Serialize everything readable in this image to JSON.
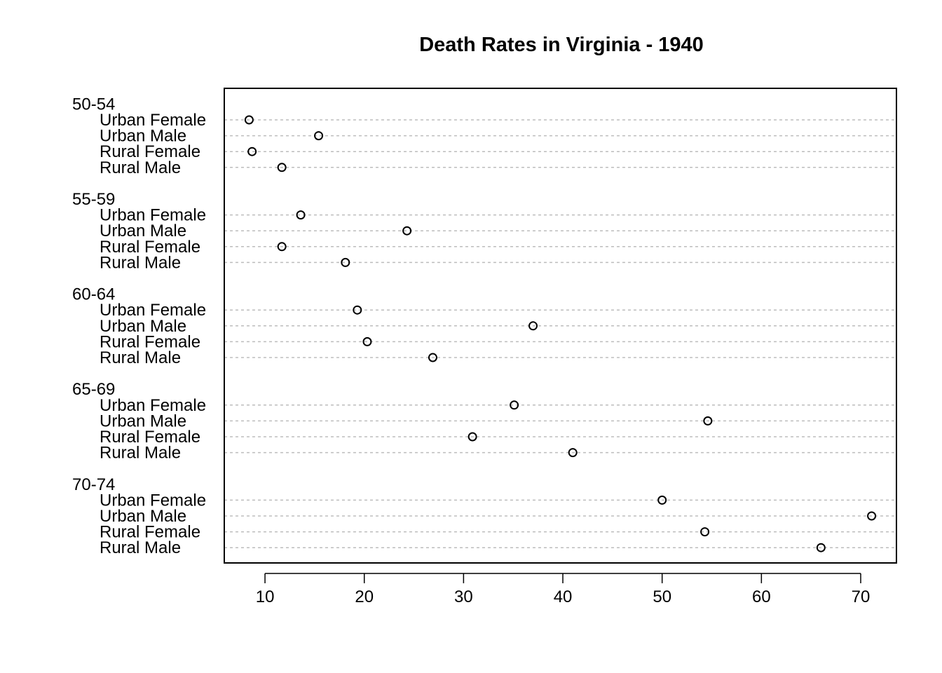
{
  "chart_data": {
    "type": "scatter",
    "title": "Death Rates in Virginia - 1940",
    "xlabel": "",
    "ylabel": "",
    "xlim": [
      5.9,
      73.6
    ],
    "xticks": [
      10,
      20,
      30,
      40,
      50,
      60,
      70
    ],
    "grid": "dashed horizontal per row",
    "groups": [
      {
        "name": "50-54",
        "rows": [
          {
            "label": "Urban Female",
            "value": 8.4
          },
          {
            "label": "Urban Male",
            "value": 15.4
          },
          {
            "label": "Rural Female",
            "value": 8.7
          },
          {
            "label": "Rural Male",
            "value": 11.7
          }
        ]
      },
      {
        "name": "55-59",
        "rows": [
          {
            "label": "Urban Female",
            "value": 13.6
          },
          {
            "label": "Urban Male",
            "value": 24.3
          },
          {
            "label": "Rural Female",
            "value": 11.7
          },
          {
            "label": "Rural Male",
            "value": 18.1
          }
        ]
      },
      {
        "name": "60-64",
        "rows": [
          {
            "label": "Urban Female",
            "value": 19.3
          },
          {
            "label": "Urban Male",
            "value": 37.0
          },
          {
            "label": "Rural Female",
            "value": 20.3
          },
          {
            "label": "Rural Male",
            "value": 26.9
          }
        ]
      },
      {
        "name": "65-69",
        "rows": [
          {
            "label": "Urban Female",
            "value": 35.1
          },
          {
            "label": "Urban Male",
            "value": 54.6
          },
          {
            "label": "Rural Female",
            "value": 30.9
          },
          {
            "label": "Rural Male",
            "value": 41.0
          }
        ]
      },
      {
        "name": "70-74",
        "rows": [
          {
            "label": "Urban Female",
            "value": 50.0
          },
          {
            "label": "Urban Male",
            "value": 71.1
          },
          {
            "label": "Rural Female",
            "value": 54.3
          },
          {
            "label": "Rural Male",
            "value": 66.0
          }
        ]
      }
    ]
  }
}
